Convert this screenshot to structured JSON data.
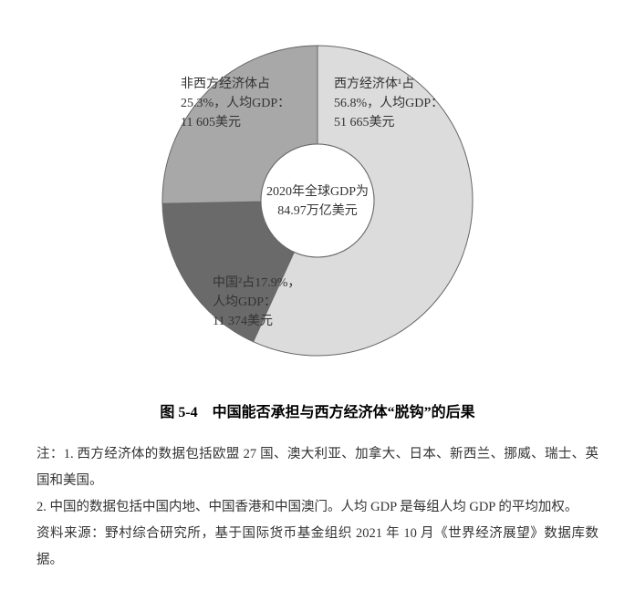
{
  "chart": {
    "type": "pie",
    "background_color": "#ffffff",
    "outer_radius": 170,
    "inner_radius": 62,
    "stroke_color": "#666666",
    "stroke_width": 1,
    "slices": [
      {
        "name": "west",
        "value": 56.8,
        "color": "#dcdcdc",
        "label_line1": "西方经济体¹占",
        "label_line2": "56.8%，人均GDP：",
        "label_line3": "51 665美元"
      },
      {
        "name": "china",
        "value": 17.9,
        "color": "#6a6a6a",
        "label_line1": "中国²占17.9%，",
        "label_line2": "人均GDP：",
        "label_line3": "11 374美元"
      },
      {
        "name": "nonwest",
        "value": 25.3,
        "color": "#a8a8a8",
        "label_line1": "非西方经济体占",
        "label_line2": "25.3%，人均GDP：",
        "label_line3": "11 605美元"
      }
    ],
    "center_label_line1": "2020年全球GDP为",
    "center_label_line2": "84.97万亿美元",
    "label_fontsize": 14,
    "label_color": "#333333"
  },
  "caption": "图 5-4　中国能否承担与西方经济体“脱钩”的后果",
  "notes": {
    "note1": "注：1. 西方经济体的数据包括欧盟 27 国、澳大利亚、加拿大、日本、新西兰、挪威、瑞士、英国和美国。",
    "note2": "2. 中国的数据包括中国内地、中国香港和中国澳门。人均 GDP 是每组人均 GDP 的平均加权。",
    "source": "资料来源：野村综合研究所，基于国际货币基金组织 2021 年 10 月《世界经济展望》数据库数据。"
  }
}
